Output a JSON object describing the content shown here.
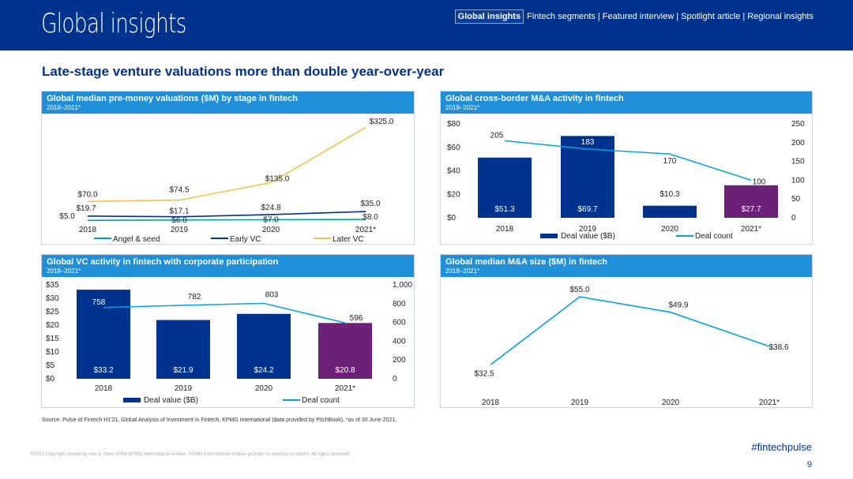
{
  "header": {
    "brand": "Global insights",
    "nav": {
      "active": "Global insights",
      "items": [
        "Fintech segments",
        "Featured interview",
        "Spotlight article",
        "Regional insights"
      ],
      "separator": "|"
    }
  },
  "headline": "Late-stage venture valuations more than double year-over-year",
  "colors": {
    "navy": "#00338d",
    "blue": "#1e8fd8",
    "purple": "#6d2077",
    "gold": "#f1c44d",
    "teal": "#00a3a1",
    "lightblue": "#00a3e0"
  },
  "chart_data": [
    {
      "id": "valuations",
      "type": "line",
      "title": "Global median pre-money valuations ($M) by stage in fintech",
      "subtitle": "2018–2021*",
      "categories": [
        "2018",
        "2019",
        "2020",
        "2021*"
      ],
      "ylim": [
        0,
        340
      ],
      "series": [
        {
          "name": "Angel & seed",
          "values": [
            5.0,
            6.0,
            7.0,
            8.0
          ],
          "labels": [
            "$5.0",
            "$6.0",
            "$7.0",
            "$8.0"
          ]
        },
        {
          "name": "Early VC",
          "values": [
            19.7,
            17.1,
            24.8,
            35.0
          ],
          "labels": [
            "$19.7",
            "$17.1",
            "$24.8",
            "$35.0"
          ]
        },
        {
          "name": "Later VC",
          "values": [
            70.0,
            74.5,
            135.0,
            325.0
          ],
          "labels": [
            "$70.0",
            "$74.5",
            "$135.0",
            "$325.0"
          ]
        }
      ],
      "legend": "bottom"
    },
    {
      "id": "crossborder",
      "type": "bar",
      "title": "Global cross-border M&A activity in fintech",
      "subtitle": "2018–2021*",
      "categories": [
        "2018",
        "2019",
        "2020",
        "2021*"
      ],
      "left_axis": {
        "min": 0,
        "max": 80,
        "ticks": [
          "$0",
          "$20",
          "$40",
          "$60",
          "$80"
        ],
        "tick_values": [
          0,
          20,
          40,
          60,
          80
        ]
      },
      "right_axis": {
        "min": 0,
        "max": 250,
        "ticks": [
          "0",
          "50",
          "100",
          "150",
          "200",
          "250"
        ],
        "tick_values": [
          0,
          50,
          100,
          150,
          200,
          250
        ]
      },
      "bars": {
        "name": "Deal value ($B)",
        "values": [
          51.3,
          69.7,
          10.3,
          27.7
        ],
        "labels": [
          "$51.3",
          "$69.7",
          "$10.3",
          "$27.7"
        ]
      },
      "line": {
        "name": "Deal count",
        "values": [
          205,
          183,
          170,
          100
        ],
        "labels": [
          "205",
          "183",
          "170",
          "100"
        ]
      }
    },
    {
      "id": "cvc",
      "type": "bar",
      "title": "Global VC activity in fintech with corporate participation",
      "subtitle": "2018–2021*",
      "categories": [
        "2018",
        "2019",
        "2020",
        "2021*"
      ],
      "left_axis": {
        "min": 0,
        "max": 35,
        "ticks": [
          "$0",
          "$5",
          "$10",
          "$15",
          "$20",
          "$25",
          "$30",
          "$35"
        ],
        "tick_values": [
          0,
          5,
          10,
          15,
          20,
          25,
          30,
          35
        ]
      },
      "right_axis": {
        "min": 0,
        "max": 1000,
        "ticks": [
          "0",
          "200",
          "400",
          "600",
          "800",
          "1,000"
        ],
        "tick_values": [
          0,
          200,
          400,
          600,
          800,
          1000
        ]
      },
      "bars": {
        "name": "Deal value ($B)",
        "values": [
          33.2,
          21.9,
          24.2,
          20.8
        ],
        "labels": [
          "$33.2",
          "$21.9",
          "$24.2",
          "$20.8"
        ]
      },
      "line": {
        "name": "Deal count",
        "values": [
          758,
          782,
          803,
          596
        ],
        "labels": [
          "758",
          "782",
          "803",
          "596"
        ]
      }
    },
    {
      "id": "masize",
      "type": "line",
      "title": "Global median M&A size ($M) in fintech",
      "subtitle": "2018–2021*",
      "categories": [
        "2018",
        "2019",
        "2020",
        "2021*"
      ],
      "ylim": [
        25,
        60
      ],
      "series": [
        {
          "name": "Median M&A size",
          "values": [
            32.5,
            55.0,
            49.9,
            38.6
          ],
          "labels": [
            "$32.5",
            "$55.0",
            "$49.9",
            "$38.6"
          ]
        }
      ]
    }
  ],
  "footer": {
    "source": "Source: Pulse of Fintech H1'21, Global Analysis of Investment in Fintech, KPMG International (data provided by PitchBook), *as of 30 June 2021.",
    "copyright": "©2021 Copyright owned by one or more of the KPMG International entities. KPMG International entities provide no services to clients. All rights reserved.",
    "hashtag": "#fintechpulse",
    "page": "9"
  }
}
